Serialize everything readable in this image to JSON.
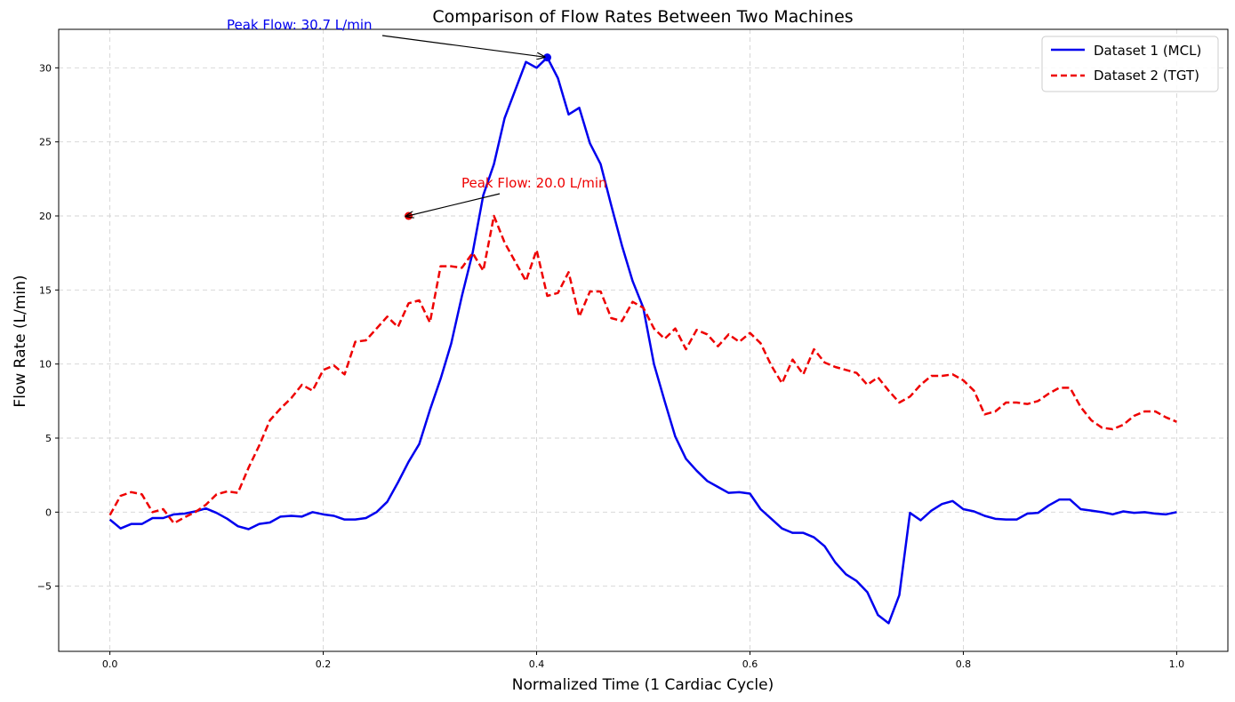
{
  "chart_data": {
    "type": "line",
    "title": "Comparison of Flow Rates Between Two Machines",
    "xlabel": "Normalized Time (1 Cardiac Cycle)",
    "ylabel": "Flow Rate (L/min)",
    "xlim": [
      -0.048,
      1.048
    ],
    "ylim": [
      -9.4,
      32.6
    ],
    "xticks": [
      0.0,
      0.2,
      0.4,
      0.6,
      0.8,
      1.0
    ],
    "xtick_labels": [
      "0.0",
      "0.2",
      "0.4",
      "0.6",
      "0.8",
      "1.0"
    ],
    "yticks": [
      -5,
      0,
      5,
      10,
      15,
      20,
      25,
      30
    ],
    "ytick_labels": [
      "−5",
      "0",
      "5",
      "10",
      "15",
      "20",
      "25",
      "30"
    ],
    "grid": true,
    "legend_position": "top-right",
    "x_step": 0.01,
    "series": [
      {
        "name": "Dataset 1 (MCL)",
        "color": "#0000ee",
        "linestyle": "solid",
        "values": [
          -0.5,
          -1.1,
          -0.8,
          -0.8,
          -0.4,
          -0.4,
          -0.15,
          -0.1,
          0.05,
          0.25,
          -0.05,
          -0.45,
          -0.95,
          -1.15,
          -0.8,
          -0.7,
          -0.3,
          -0.25,
          -0.3,
          0.0,
          -0.15,
          -0.25,
          -0.5,
          -0.5,
          -0.4,
          0.0,
          0.7,
          2.0,
          3.4,
          4.6,
          6.9,
          9.0,
          11.4,
          14.6,
          17.5,
          21.4,
          23.5,
          26.6,
          28.5,
          30.4,
          30.0,
          30.7,
          29.3,
          26.85,
          27.3,
          24.9,
          23.5,
          20.7,
          18.0,
          15.6,
          13.8,
          10.0,
          7.5,
          5.1,
          3.6,
          2.8,
          2.1,
          1.7,
          1.3,
          1.35,
          1.25,
          0.2,
          -0.45,
          -1.1,
          -1.4,
          -1.4,
          -1.7,
          -2.3,
          -3.4,
          -4.2,
          -4.65,
          -5.4,
          -6.95,
          -7.5,
          -5.6,
          -0.05,
          -0.55,
          0.1,
          0.55,
          0.75,
          0.2,
          0.05,
          -0.25,
          -0.45,
          -0.5,
          -0.5,
          -0.1,
          -0.05,
          0.45,
          0.85,
          0.85,
          0.2,
          0.1,
          0.0,
          -0.15,
          0.05,
          -0.05,
          0.0,
          -0.1,
          -0.15,
          0.0
        ]
      },
      {
        "name": "Dataset 2 (TGT)",
        "color": "#ee0000",
        "linestyle": "dashed",
        "values": [
          -0.2,
          1.1,
          1.35,
          1.2,
          0.0,
          0.2,
          -0.75,
          -0.35,
          0.0,
          0.5,
          1.2,
          1.4,
          1.3,
          3.0,
          4.5,
          6.2,
          7.0,
          7.7,
          8.6,
          8.2,
          9.6,
          9.9,
          9.3,
          11.5,
          11.6,
          12.4,
          13.2,
          12.5,
          14.1,
          14.3,
          12.8,
          16.6,
          16.6,
          16.5,
          17.5,
          16.3,
          20.0,
          18.2,
          16.9,
          15.6,
          17.7,
          14.6,
          14.8,
          16.2,
          13.2,
          14.9,
          14.9,
          13.1,
          12.9,
          14.2,
          13.8,
          12.4,
          11.7,
          12.4,
          11.0,
          12.3,
          12.0,
          11.2,
          12.0,
          11.5,
          12.1,
          11.4,
          9.9,
          8.7,
          10.3,
          9.3,
          11.0,
          10.1,
          9.8,
          9.6,
          9.4,
          8.6,
          9.1,
          8.2,
          7.4,
          7.8,
          8.6,
          9.2,
          9.2,
          9.3,
          8.9,
          8.2,
          6.6,
          6.8,
          7.4,
          7.4,
          7.3,
          7.5,
          8.0,
          8.4,
          8.4,
          7.1,
          6.2,
          5.7,
          5.6,
          5.9,
          6.5,
          6.8,
          6.8,
          6.4,
          6.1
        ]
      }
    ],
    "annotations": [
      {
        "text": "Peak Flow: 30.7 L/min",
        "x": 0.41,
        "y": 30.7,
        "color": "#0000ee"
      },
      {
        "text": "Peak Flow: 20.0 L/min",
        "x": 0.28,
        "y": 20.0,
        "color": "#ee0000"
      }
    ]
  }
}
